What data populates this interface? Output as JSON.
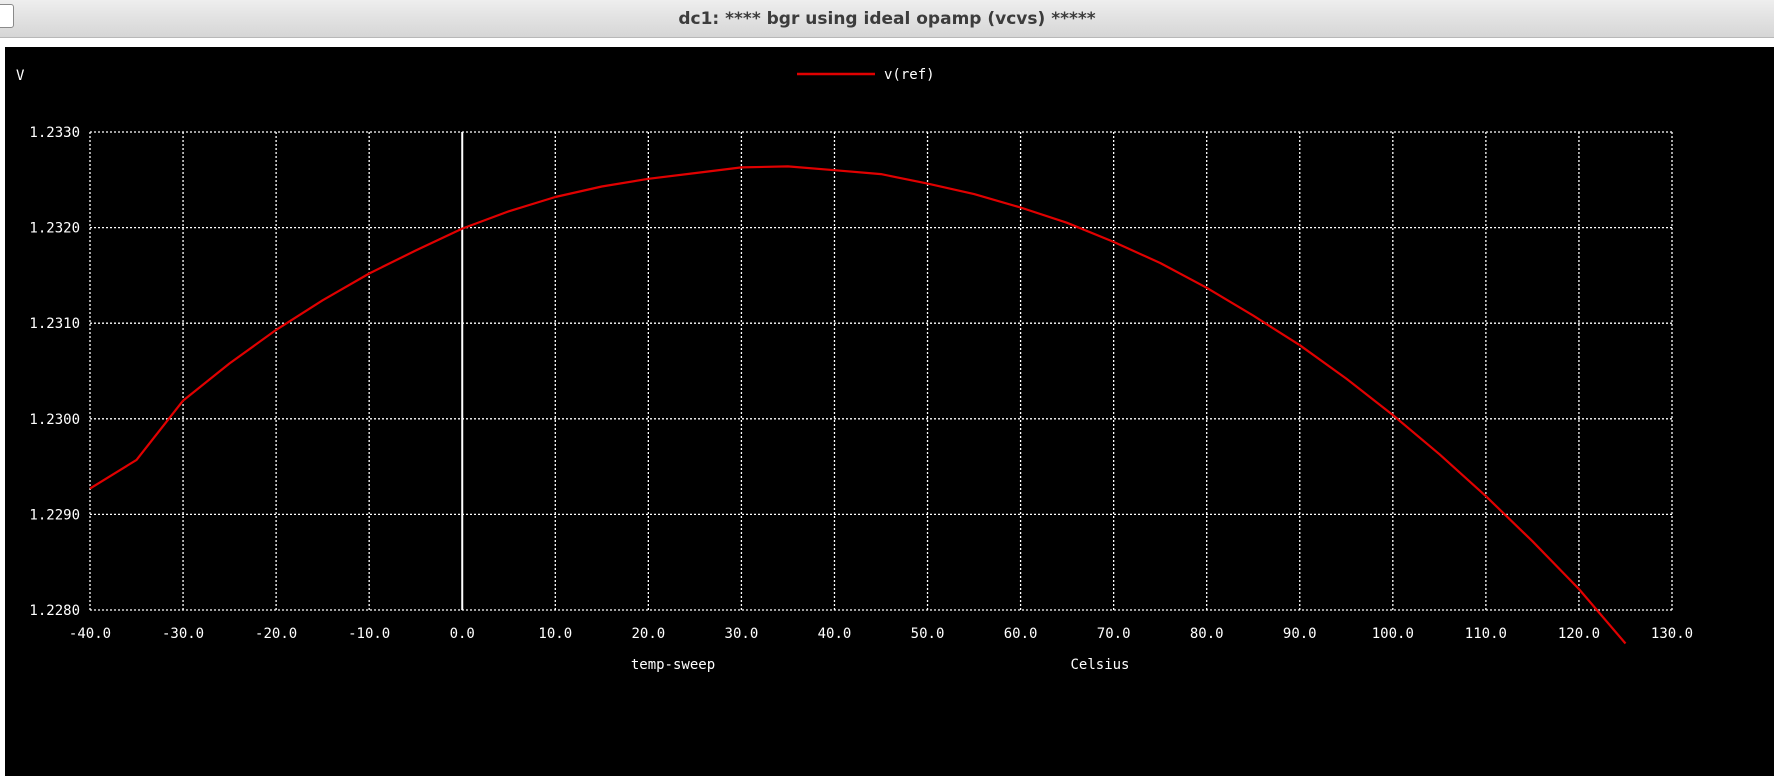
{
  "window": {
    "title": "dc1: **** bgr using ideal opamp (vcvs) *****"
  },
  "chart_data": {
    "type": "line",
    "title": "",
    "xlabel": "temp-sweep",
    "xunit": "Celsius",
    "ylabel": "V",
    "xlim": [
      -40,
      130
    ],
    "ylim": [
      1.228,
      1.233
    ],
    "xticks": [
      -40,
      -30,
      -20,
      -10,
      0,
      10,
      20,
      30,
      40,
      50,
      60,
      70,
      80,
      90,
      100,
      110,
      120,
      130
    ],
    "xtick_labels": [
      "-40.0",
      "-30.0",
      "-20.0",
      "-10.0",
      "0.0",
      "10.0",
      "20.0",
      "30.0",
      "40.0",
      "50.0",
      "60.0",
      "70.0",
      "80.0",
      "90.0",
      "100.0",
      "110.0",
      "120.0",
      "130.0"
    ],
    "yticks": [
      1.228,
      1.229,
      1.23,
      1.231,
      1.232,
      1.233
    ],
    "ytick_labels": [
      "1.2280",
      "1.2290",
      "1.2300",
      "1.2310",
      "1.2320",
      "1.2330"
    ],
    "grid": true,
    "grid_style": "dotted",
    "background": "#000000",
    "foreground": "#ffffff",
    "legend_position": "top-center",
    "series": [
      {
        "name": "v(ref)",
        "color": "#e00000",
        "x": [
          -40,
          -35,
          -30,
          -25,
          -20,
          -15,
          -10,
          -5,
          0,
          5,
          10,
          15,
          20,
          25,
          30,
          35,
          40,
          45,
          50,
          55,
          60,
          65,
          70,
          75,
          80,
          85,
          90,
          95,
          100,
          105,
          110,
          115,
          120,
          125
        ],
        "y": [
          1.22927,
          1.22957,
          1.23019,
          1.23058,
          1.23093,
          1.23124,
          1.23152,
          1.23176,
          1.23199,
          1.23217,
          1.23232,
          1.23243,
          1.23251,
          1.23257,
          1.23263,
          1.23264,
          1.2326,
          1.23256,
          1.23246,
          1.23235,
          1.23221,
          1.23205,
          1.23185,
          1.23163,
          1.23137,
          1.23108,
          1.23077,
          1.23042,
          1.23004,
          1.22963,
          1.22919,
          1.22872,
          1.22822,
          1.22765
        ]
      }
    ]
  }
}
